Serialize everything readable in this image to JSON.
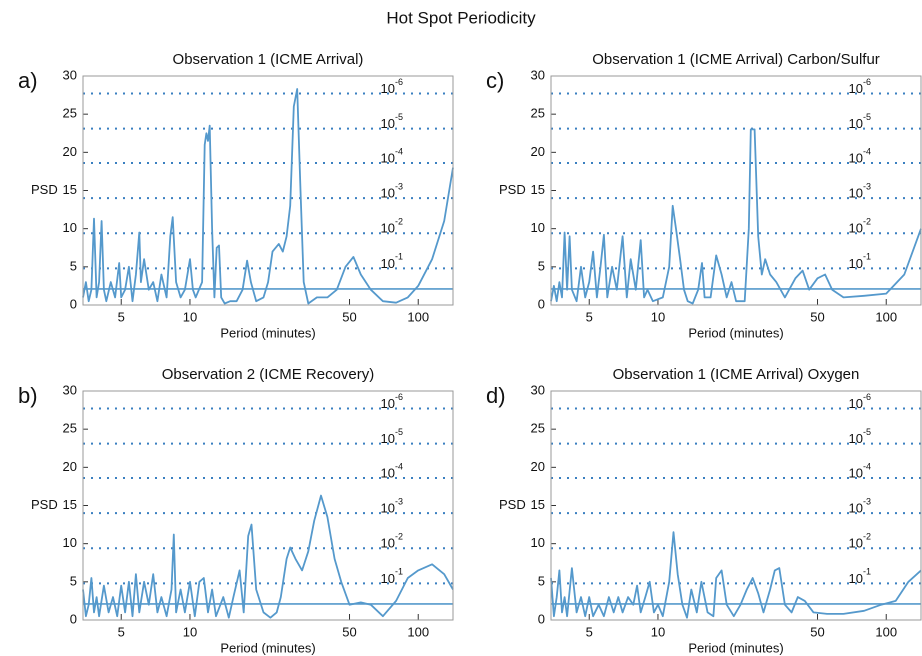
{
  "title": "Hot Spot Periodicity",
  "chart_data": [
    {
      "type": "line",
      "panel_label": "a)",
      "title": "Observation 1 (ICME Arrival)",
      "x_label": "Period (minutes)",
      "y_label": "PSD",
      "xlog": true,
      "xlim": [
        3.4,
        142
      ],
      "ylim": [
        0,
        30
      ],
      "xticks": [
        5,
        10,
        50,
        100
      ],
      "yticks": [
        0,
        5,
        10,
        15,
        20,
        25,
        30
      ],
      "color": "#5599cc",
      "threshold": 2.1,
      "sig_levels": [
        {
          "value": 4.8,
          "label": "10",
          "power": "-1"
        },
        {
          "value": 9.4,
          "label": "10",
          "power": "-2"
        },
        {
          "value": 14,
          "label": "10",
          "power": "-3"
        },
        {
          "value": 18.6,
          "label": "10",
          "power": "-4"
        },
        {
          "value": 23.1,
          "label": "10",
          "power": "-5"
        },
        {
          "value": 27.7,
          "label": "10",
          "power": "-6"
        }
      ],
      "x": [
        3.4,
        3.5,
        3.6,
        3.7,
        3.8,
        3.9,
        4.0,
        4.1,
        4.2,
        4.3,
        4.5,
        4.7,
        4.9,
        5.0,
        5.2,
        5.4,
        5.6,
        5.8,
        6.0,
        6.1,
        6.3,
        6.6,
        6.9,
        7.2,
        7.5,
        7.9,
        8.2,
        8.4,
        8.7,
        9.1,
        9.5,
        10.0,
        10.3,
        10.6,
        11.3,
        11.6,
        11.8,
        12.0,
        12.2,
        12.5,
        12.8,
        13.1,
        13.4,
        13.7,
        14.2,
        15,
        16,
        17,
        17.8,
        18.5,
        19.5,
        21,
        22,
        23,
        24.5,
        25.5,
        26.5,
        27.5,
        28.5,
        29.5,
        30.5,
        31.5,
        33,
        36,
        40,
        44,
        48,
        52,
        56,
        62,
        70,
        80,
        90,
        100,
        115,
        130,
        142
      ],
      "values": [
        1,
        3,
        0.5,
        2,
        11.3,
        1,
        3,
        11,
        2,
        0.5,
        3,
        1,
        5.5,
        1,
        2,
        5,
        0.5,
        4,
        9.5,
        3,
        6,
        2,
        3,
        0.5,
        4,
        1,
        9,
        11.5,
        3,
        1,
        2,
        6,
        2,
        1,
        3,
        21,
        22.5,
        21.5,
        23.5,
        10,
        1,
        7.5,
        7.8,
        1,
        0.2,
        0.5,
        0.5,
        2,
        5.8,
        3,
        0.5,
        1,
        3,
        7,
        8,
        7,
        9,
        13,
        26,
        28.3,
        15,
        3,
        0.2,
        1,
        1,
        2,
        5,
        6.3,
        4,
        2,
        0.5,
        0.3,
        1,
        2.5,
        6,
        11,
        18
      ]
    },
    {
      "type": "line",
      "panel_label": "b)",
      "title": "Observation 2 (ICME Recovery)",
      "x_label": "Period (minutes)",
      "y_label": "PSD",
      "xlog": true,
      "xlim": [
        3.4,
        142
      ],
      "ylim": [
        0,
        30
      ],
      "xticks": [
        5,
        10,
        50,
        100
      ],
      "yticks": [
        0,
        5,
        10,
        15,
        20,
        25,
        30
      ],
      "color": "#5599cc",
      "threshold": 2.1,
      "sig_levels": [
        {
          "value": 4.8,
          "label": "10",
          "power": "-1"
        },
        {
          "value": 9.4,
          "label": "10",
          "power": "-2"
        },
        {
          "value": 14,
          "label": "10",
          "power": "-3"
        },
        {
          "value": 18.6,
          "label": "10",
          "power": "-4"
        },
        {
          "value": 23.1,
          "label": "10",
          "power": "-5"
        },
        {
          "value": 27.7,
          "label": "10",
          "power": "-6"
        }
      ],
      "x": [
        3.4,
        3.5,
        3.6,
        3.7,
        3.8,
        3.9,
        4.0,
        4.2,
        4.4,
        4.6,
        4.8,
        5.0,
        5.2,
        5.4,
        5.6,
        5.8,
        6.0,
        6.3,
        6.6,
        6.9,
        7.2,
        7.5,
        7.9,
        8.3,
        8.5,
        8.7,
        9.1,
        9.5,
        10,
        10.5,
        11,
        11.5,
        12,
        12.5,
        13,
        14,
        14.8,
        15.5,
        16.5,
        17.2,
        18,
        18.6,
        19.5,
        21,
        22.5,
        24,
        25,
        26.5,
        27.5,
        29,
        31,
        33,
        35,
        37.5,
        40,
        43,
        46,
        50,
        56,
        62,
        70,
        80,
        90,
        100,
        115,
        130,
        142
      ],
      "values": [
        4,
        0.5,
        2,
        5.5,
        1,
        3,
        0.5,
        4.5,
        1,
        3,
        0.5,
        4.5,
        1,
        5,
        0.5,
        6,
        1,
        5,
        2,
        6,
        1,
        3,
        0.5,
        4,
        11.2,
        1,
        4,
        1,
        5,
        0.5,
        5,
        5.5,
        1,
        4,
        0.5,
        3,
        0.3,
        3,
        6.5,
        1,
        11,
        12.5,
        4,
        1,
        0.3,
        1,
        3,
        8,
        9.5,
        8,
        6.5,
        9,
        13,
        16.3,
        13.5,
        8,
        5,
        2,
        2.3,
        2,
        0.5,
        2.5,
        5.5,
        6.5,
        7.3,
        6,
        4
      ]
    },
    {
      "type": "line",
      "panel_label": "c)",
      "title": "Observation 1 (ICME Arrival) Carbon/Sulfur",
      "x_label": "Period (minutes)",
      "y_label": "PSD",
      "xlog": true,
      "xlim": [
        3.4,
        142
      ],
      "ylim": [
        0,
        30
      ],
      "xticks": [
        5,
        10,
        50,
        100
      ],
      "yticks": [
        0,
        5,
        10,
        15,
        20,
        25,
        30
      ],
      "color": "#5599cc",
      "threshold": 2.1,
      "sig_levels": [
        {
          "value": 4.8,
          "label": "10",
          "power": "-1"
        },
        {
          "value": 9.4,
          "label": "10",
          "power": "-2"
        },
        {
          "value": 14,
          "label": "10",
          "power": "-3"
        },
        {
          "value": 18.6,
          "label": "10",
          "power": "-4"
        },
        {
          "value": 23.1,
          "label": "10",
          "power": "-5"
        },
        {
          "value": 27.7,
          "label": "10",
          "power": "-6"
        }
      ],
      "x": [
        3.4,
        3.5,
        3.6,
        3.7,
        3.8,
        3.9,
        4.0,
        4.1,
        4.2,
        4.4,
        4.6,
        4.8,
        5.0,
        5.2,
        5.4,
        5.6,
        5.8,
        6.0,
        6.3,
        6.6,
        7.0,
        7.3,
        7.6,
        8.0,
        8.4,
        8.7,
        9.0,
        9.5,
        10.5,
        11.2,
        11.6,
        12,
        12.5,
        13,
        13.5,
        14.2,
        15,
        15.6,
        16,
        17,
        18,
        19,
        20,
        21,
        22,
        24,
        25,
        25.5,
        26.5,
        27.5,
        28.5,
        29.5,
        31,
        33,
        36,
        40,
        43,
        46,
        50,
        54,
        58,
        65,
        80,
        100,
        120,
        142
      ],
      "values": [
        0.5,
        2.5,
        0.5,
        3,
        1,
        9.5,
        2,
        9,
        2,
        0.5,
        5,
        1,
        3,
        7,
        1,
        5,
        9.2,
        1,
        5,
        2,
        9,
        1,
        6,
        2,
        8.5,
        1,
        2,
        0.5,
        1,
        5,
        13,
        10,
        6,
        2,
        0.5,
        0.2,
        2,
        5.5,
        1,
        1,
        6.5,
        4,
        1,
        3,
        0.5,
        0.5,
        10,
        23,
        23,
        9,
        4,
        6,
        4,
        3,
        1,
        3.5,
        4.5,
        2,
        3.5,
        4,
        2,
        1,
        1.2,
        1.5,
        4,
        10
      ]
    },
    {
      "type": "line",
      "panel_label": "d)",
      "title": "Observation 1 (ICME Arrival) Oxygen",
      "x_label": "Period (minutes)",
      "y_label": "PSD",
      "xlog": true,
      "xlim": [
        3.4,
        142
      ],
      "ylim": [
        0,
        30
      ],
      "xticks": [
        5,
        10,
        50,
        100
      ],
      "yticks": [
        0,
        5,
        10,
        15,
        20,
        25,
        30
      ],
      "color": "#5599cc",
      "threshold": 2.1,
      "sig_levels": [
        {
          "value": 4.8,
          "label": "10",
          "power": "-1"
        },
        {
          "value": 9.4,
          "label": "10",
          "power": "-2"
        },
        {
          "value": 14,
          "label": "10",
          "power": "-3"
        },
        {
          "value": 18.6,
          "label": "10",
          "power": "-4"
        },
        {
          "value": 23.1,
          "label": "10",
          "power": "-5"
        },
        {
          "value": 27.7,
          "label": "10",
          "power": "-6"
        }
      ],
      "x": [
        3.4,
        3.5,
        3.6,
        3.7,
        3.8,
        3.9,
        4.0,
        4.2,
        4.4,
        4.6,
        4.8,
        5.0,
        5.2,
        5.5,
        5.8,
        6.1,
        6.4,
        6.7,
        7.0,
        7.4,
        7.8,
        8.1,
        8.4,
        8.8,
        9.2,
        9.6,
        10.0,
        10.5,
        11.2,
        11.7,
        12.2,
        12.8,
        13.4,
        14,
        14.8,
        15.5,
        16.5,
        17.5,
        18,
        19,
        20,
        21.5,
        23,
        24.5,
        26,
        27.5,
        29,
        31,
        32.5,
        34,
        36,
        38.5,
        41,
        44,
        48,
        55,
        65,
        80,
        95,
        110,
        125,
        142
      ],
      "values": [
        5.5,
        0.5,
        3,
        6.5,
        1,
        3,
        0.5,
        6.8,
        1,
        3,
        0.5,
        3,
        0.5,
        2,
        0.5,
        3,
        1,
        3,
        1,
        3,
        2,
        4.5,
        1,
        3,
        5,
        1,
        2,
        0.5,
        5,
        11.5,
        6,
        2,
        0.3,
        4,
        1,
        5,
        1,
        0.5,
        5.5,
        6.5,
        2,
        0.5,
        2,
        4,
        5.5,
        3.5,
        1,
        4,
        6.5,
        6.8,
        2,
        1,
        3,
        2.5,
        1,
        0.8,
        0.8,
        1.2,
        2,
        2.5,
        5,
        6.5
      ]
    }
  ]
}
